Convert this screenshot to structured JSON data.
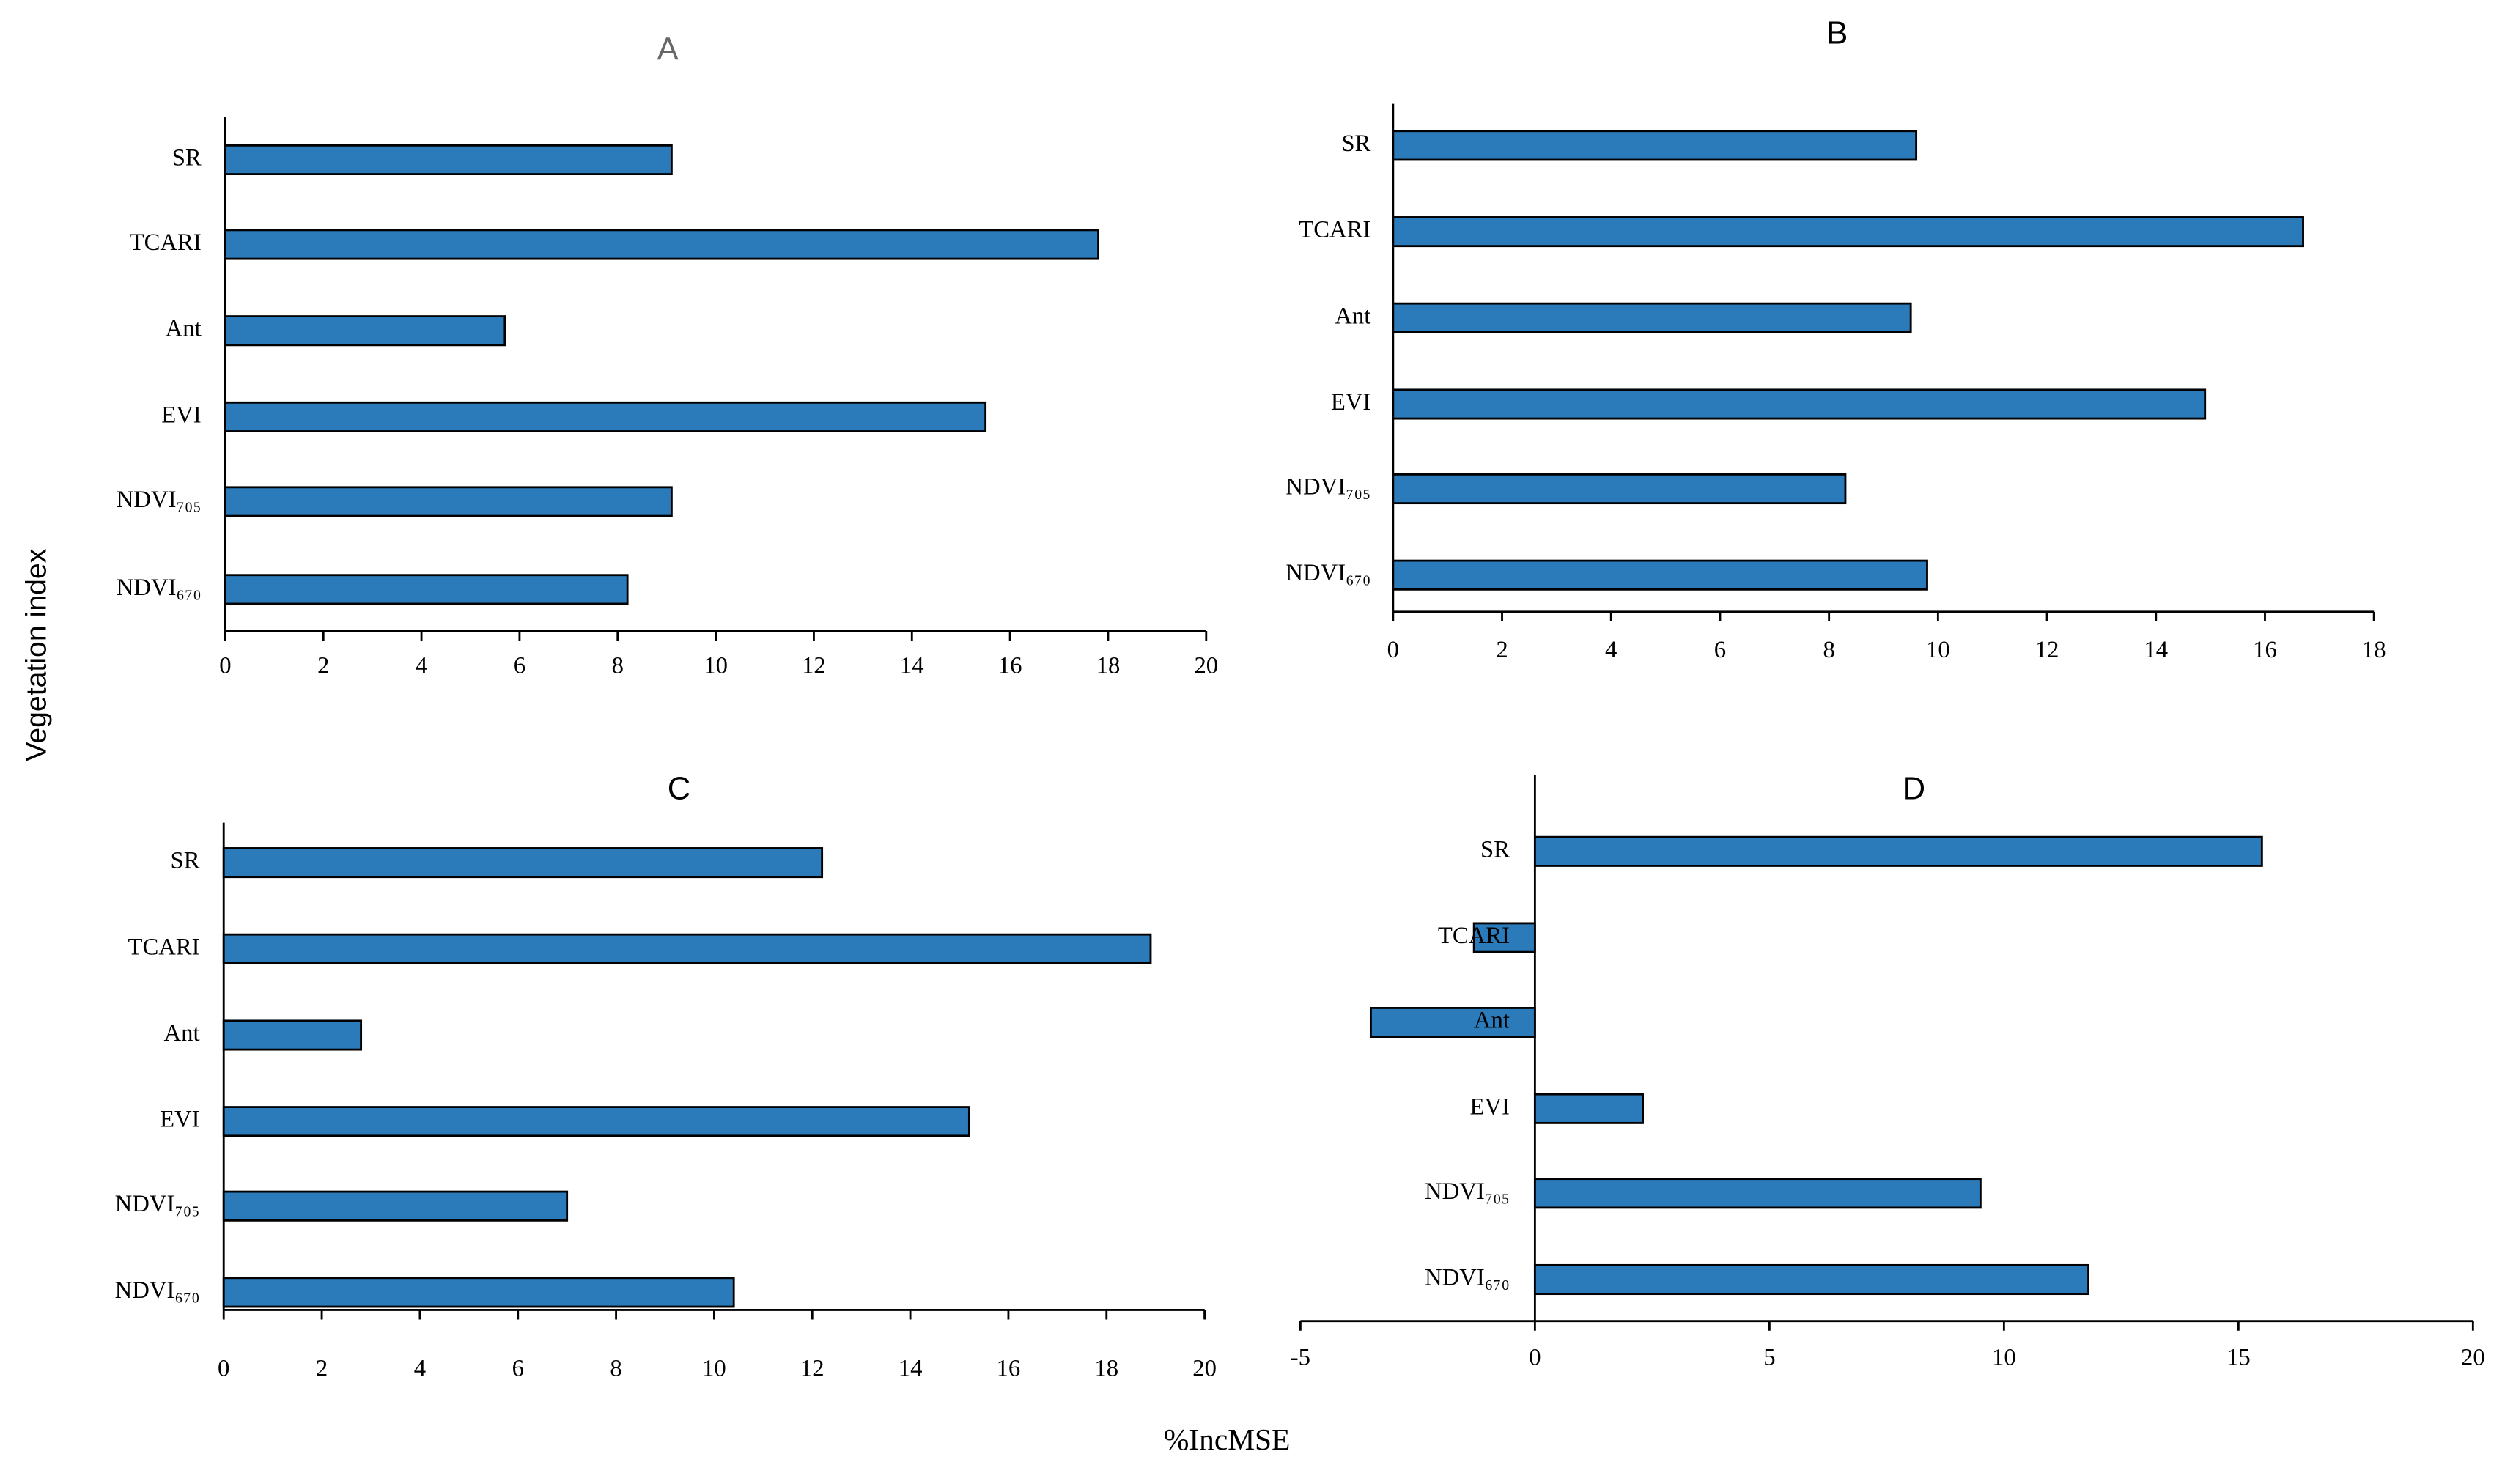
{
  "ylabel": "Vegetation index",
  "xlabel": "%IncMSE",
  "chart_data": [
    {
      "type": "bar",
      "orientation": "horizontal",
      "title": "A",
      "color": "#2b7bba",
      "categories": [
        "SR",
        "TCARI",
        "Ant",
        "EVI",
        "NDVI₇₀₅",
        "NDVI₆₇₀"
      ],
      "values": [
        9.1,
        17.8,
        5.7,
        15.5,
        9.1,
        8.2
      ],
      "xlim": [
        0,
        20
      ],
      "xticks": [
        0,
        2,
        4,
        6,
        8,
        10,
        12,
        14,
        16,
        18,
        20
      ]
    },
    {
      "type": "bar",
      "orientation": "horizontal",
      "title": "B",
      "color": "#2b7bba",
      "categories": [
        "SR",
        "TCARI",
        "Ant",
        "EVI",
        "NDVI₇₀₅",
        "NDVI₆₇₀"
      ],
      "values": [
        9.6,
        16.7,
        9.5,
        14.9,
        8.3,
        9.8
      ],
      "xlim": [
        0,
        18
      ],
      "xticks": [
        0,
        2,
        4,
        6,
        8,
        10,
        12,
        14,
        16,
        18
      ]
    },
    {
      "type": "bar",
      "orientation": "horizontal",
      "title": "C",
      "color": "#2b7bba",
      "categories": [
        "SR",
        "TCARI",
        "Ant",
        "EVI",
        "NDVI₇₀₅",
        "NDVI₆₇₀"
      ],
      "values": [
        12.2,
        18.9,
        2.8,
        15.2,
        7.0,
        10.4
      ],
      "xlim": [
        0,
        20
      ],
      "xticks": [
        0,
        2,
        4,
        6,
        8,
        10,
        12,
        14,
        16,
        18,
        20
      ]
    },
    {
      "type": "bar",
      "orientation": "horizontal",
      "title": "D",
      "color": "#2b7bba",
      "categories": [
        "SR",
        "TCARI",
        "Ant",
        "EVI",
        "NDVI₇₀₅",
        "NDVI₆₇₀"
      ],
      "values": [
        15.5,
        -1.3,
        -3.5,
        2.3,
        9.5,
        11.8
      ],
      "xlim": [
        -5,
        20
      ],
      "xticks": [
        -5,
        0,
        5,
        10,
        15,
        20
      ]
    }
  ]
}
